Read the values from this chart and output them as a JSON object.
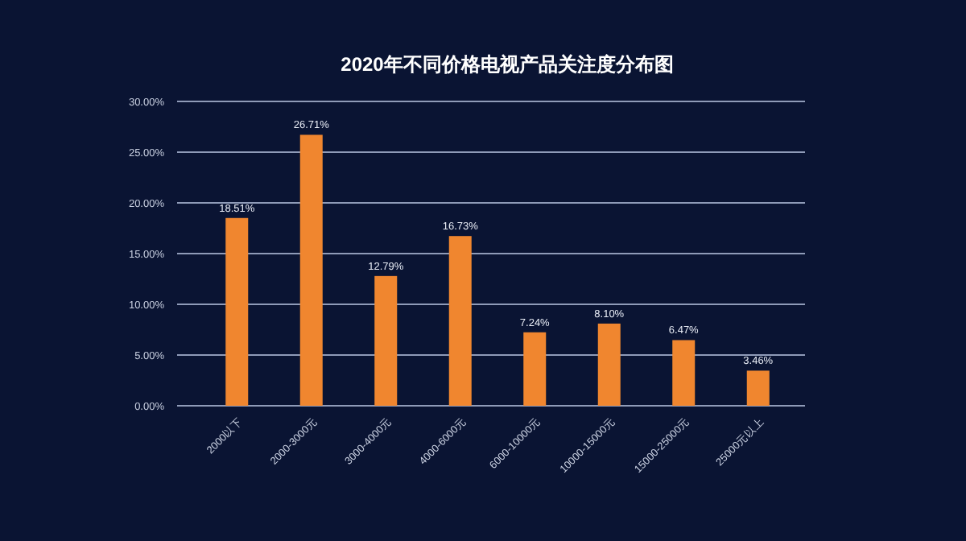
{
  "chart_data": {
    "type": "bar",
    "title": "2020年不同价格电视产品关注度分布图",
    "categories": [
      "2000以下",
      "2000-3000元",
      "3000-4000元",
      "4000-6000元",
      "6000-10000元",
      "10000-15000元",
      "15000-25000元",
      "25000元以上"
    ],
    "values": [
      18.51,
      26.71,
      12.79,
      16.73,
      7.24,
      8.1,
      6.47,
      3.46
    ],
    "value_labels": [
      "18.51%",
      "26.71%",
      "12.79%",
      "16.73%",
      "7.24%",
      "8.10%",
      "6.47%",
      "3.46%"
    ],
    "color": "#f0862f",
    "ylim": [
      0,
      30
    ],
    "yticks": [
      {
        "value": 0,
        "label": "0.00%"
      },
      {
        "value": 5,
        "label": "5.00%"
      },
      {
        "value": 10,
        "label": "10.00%"
      },
      {
        "value": 15,
        "label": "15.00%"
      },
      {
        "value": 20,
        "label": "20.00%"
      },
      {
        "value": 25,
        "label": "25.00%"
      },
      {
        "value": 30,
        "label": "30.00%"
      }
    ],
    "grid": "y"
  }
}
